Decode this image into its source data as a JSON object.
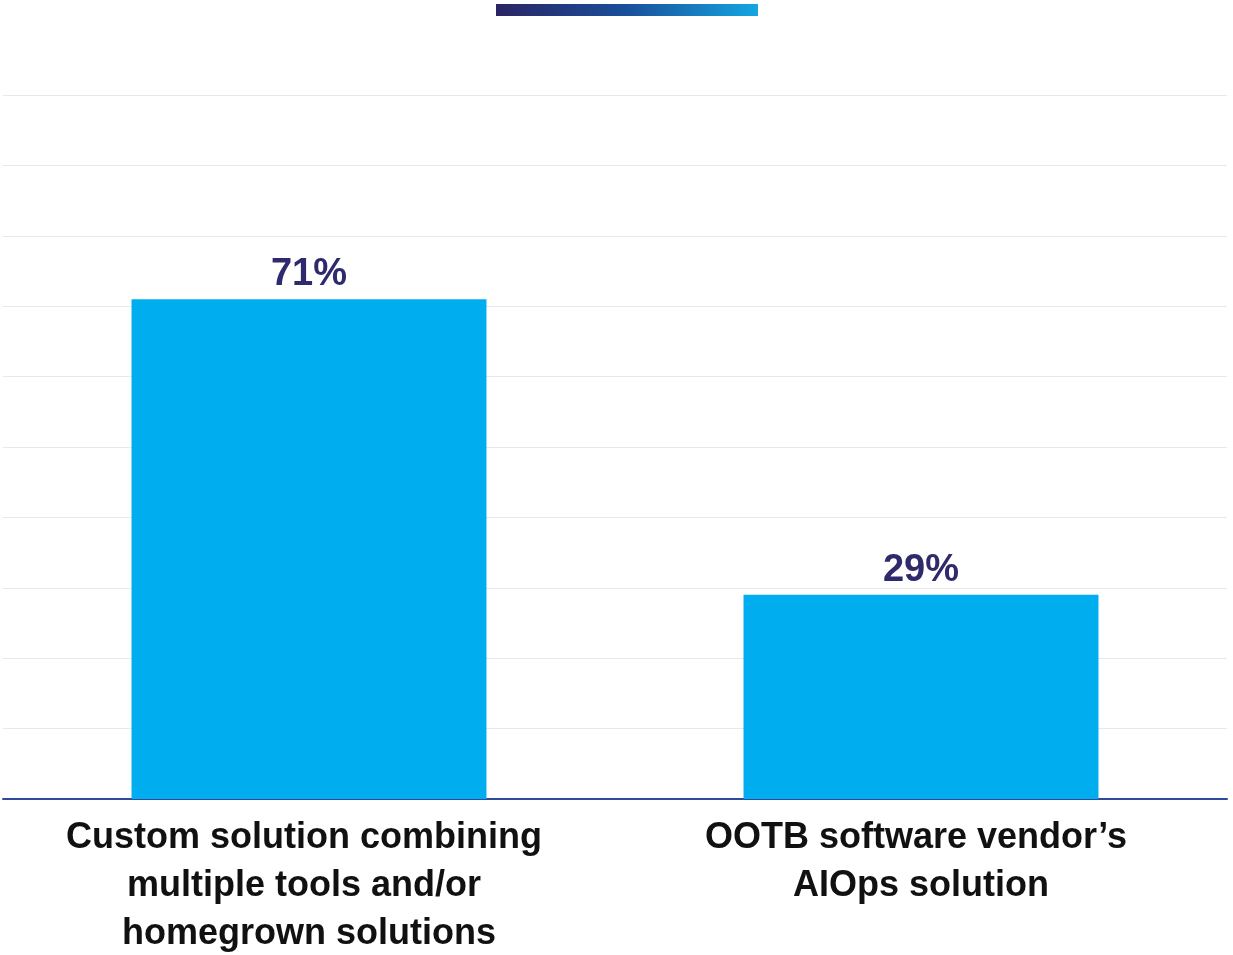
{
  "chart_data": {
    "type": "bar",
    "categories": [
      "Custom solution combining multiple tools and/or homegrown solutions",
      "OOTB software vendor’s AIOps solution"
    ],
    "values": [
      71,
      29
    ],
    "color": "#00aeef",
    "value_labels": [
      "71%",
      "29%"
    ],
    "ylim": [
      0,
      100
    ],
    "yticks": [
      {
        "value": 0,
        "label": null
      },
      {
        "value": 10,
        "label": null
      },
      {
        "value": 20,
        "label": null
      },
      {
        "value": 30,
        "label": null
      },
      {
        "value": 40,
        "label": null
      },
      {
        "value": 50,
        "label": null
      },
      {
        "value": 60,
        "label": null
      },
      {
        "value": 70,
        "label": null
      },
      {
        "value": 80,
        "label": null
      },
      {
        "value": 90,
        "label": null
      },
      {
        "value": 100,
        "label": null
      }
    ],
    "grid": "y",
    "tick_labels": "x"
  }
}
